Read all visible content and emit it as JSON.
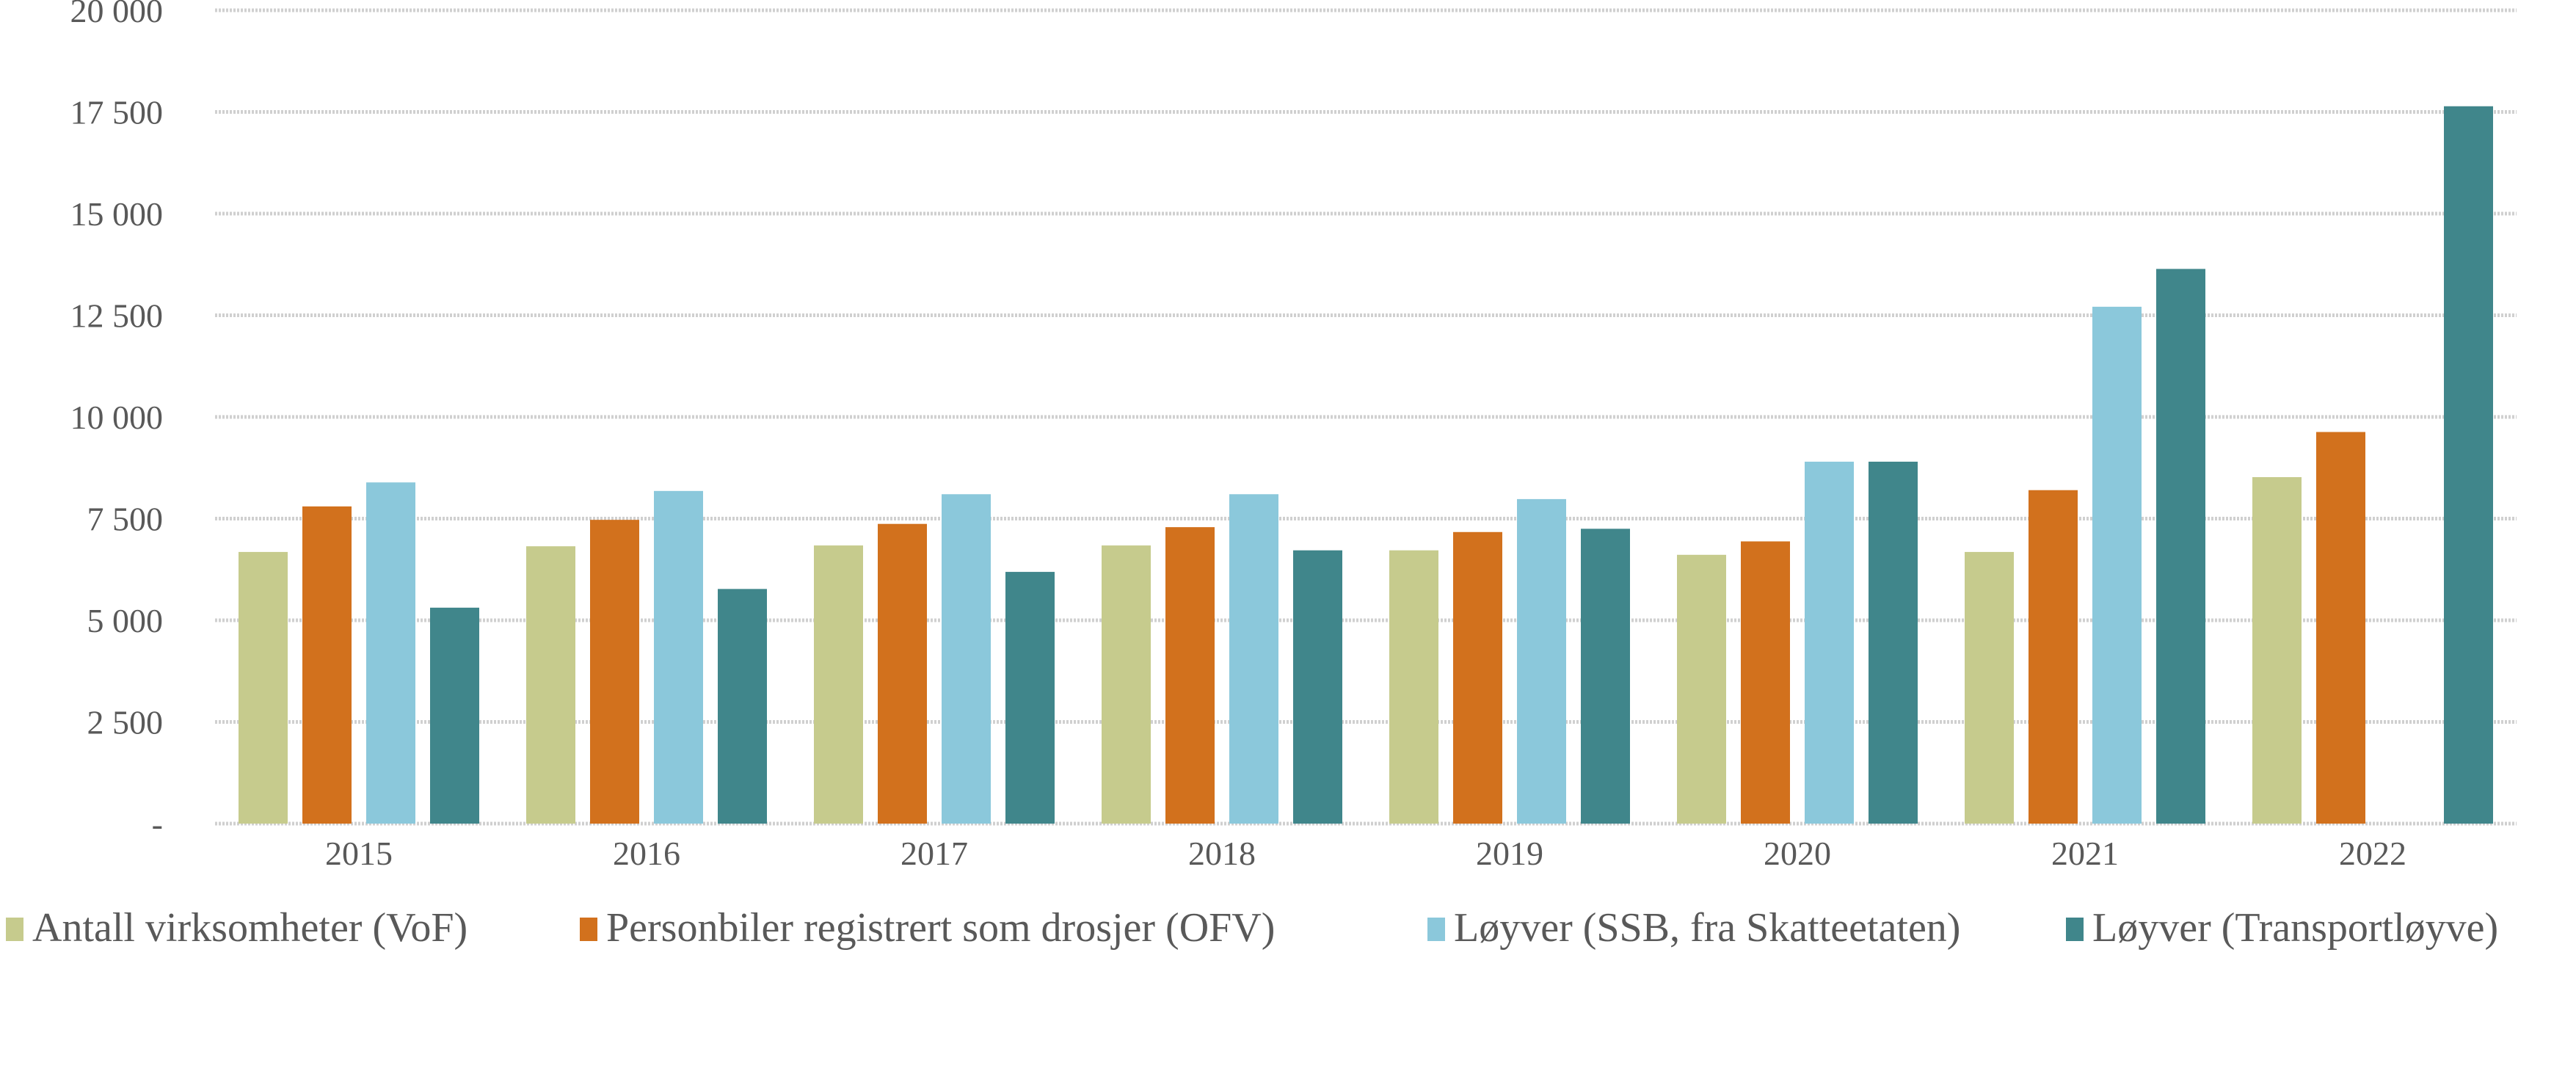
{
  "chart_data": {
    "type": "bar",
    "title": "",
    "xlabel": "",
    "ylabel": "",
    "ylim": [
      0,
      20000
    ],
    "y_ticks": [
      "-",
      "2 500",
      "5 000",
      "7 500",
      "10 000",
      "12 500",
      "15 000",
      "17 500",
      "20 000"
    ],
    "grid": true,
    "legend_position": "bottom",
    "categories": [
      "2015",
      "2016",
      "2017",
      "2018",
      "2019",
      "2020",
      "2021",
      "2022"
    ],
    "series": [
      {
        "name": "Antall virksomheter (VoF)",
        "color": "#c6cb8d",
        "values": [
          6680,
          6820,
          6840,
          6840,
          6720,
          6610,
          6680,
          8520
        ]
      },
      {
        "name": "Personbiler registrert som drosjer (OFV)",
        "color": "#d2711d",
        "values": [
          7800,
          7470,
          7370,
          7290,
          7170,
          6940,
          8200,
          9630
        ]
      },
      {
        "name": "Løyver (SSB, fra Skatteetaten)",
        "color": "#8bc8db",
        "values": [
          8390,
          8180,
          8100,
          8100,
          7980,
          8900,
          12710,
          null
        ]
      },
      {
        "name": "Løyver (Transportløyve)",
        "color": "#40868b",
        "values": [
          5310,
          5770,
          6190,
          6720,
          7250,
          8900,
          13640,
          17640
        ]
      }
    ]
  }
}
